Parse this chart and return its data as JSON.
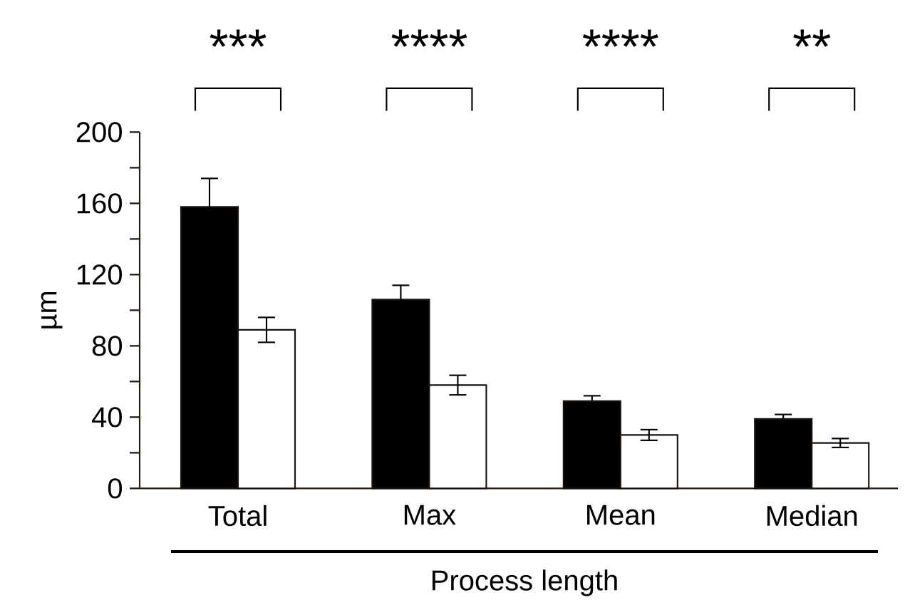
{
  "chart_data": {
    "type": "bar",
    "xlabel": "Process length",
    "ylabel": "µm",
    "categories": [
      "Total",
      "Max",
      "Mean",
      "Median"
    ],
    "series": [
      {
        "color": "#000000",
        "values": [
          158,
          106,
          49,
          39
        ],
        "errors": [
          16,
          8,
          3,
          2.5
        ]
      },
      {
        "color": "#ffffff",
        "values": [
          89,
          58,
          30,
          25.5
        ],
        "errors": [
          7,
          5.5,
          3,
          2.5
        ]
      }
    ],
    "ylim": [
      0,
      200
    ],
    "yticks": [
      0,
      {
        "value": 20,
        "label": null
      },
      40,
      {
        "value": 60,
        "label": null
      },
      80,
      {
        "value": 100,
        "label": null
      },
      120,
      {
        "value": 140,
        "label": null
      },
      160,
      {
        "value": 180,
        "label": null
      },
      200
    ],
    "annotations": [
      "***",
      "****",
      "****",
      "**"
    ],
    "grid": false
  }
}
